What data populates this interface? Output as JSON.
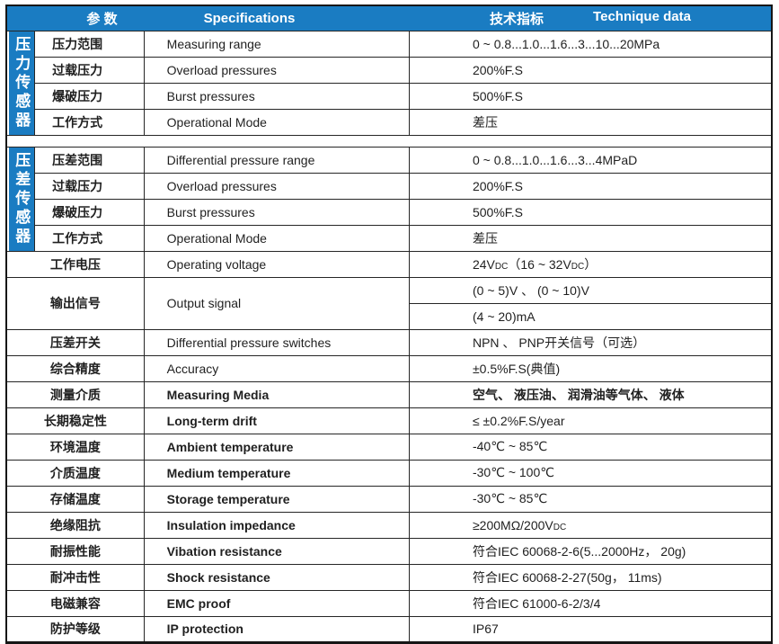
{
  "colors": {
    "header_bg": "#1a7cc2",
    "strip_bg": "#1a7cc2",
    "border": "#262626",
    "text": "#1f1f1f"
  },
  "header": {
    "param_label": "参  数",
    "spec_label": "Specifications",
    "tech_label_zh": "技术指标",
    "tech_label_en": "Technique data"
  },
  "groups": [
    {
      "type": "section",
      "strip_label": "压力传感器",
      "rows": [
        {
          "zh": "压力范围",
          "en": "Measuring range",
          "value": [
            [
              {
                "t": "0 ~ 0.8...1.0...1.6...3...10...20MPa"
              }
            ]
          ]
        },
        {
          "zh": "过载压力",
          "en": "Overload pressures",
          "value": [
            [
              {
                "t": "200%F.S"
              }
            ]
          ]
        },
        {
          "zh": "爆破压力",
          "en": "Burst pressures",
          "value": [
            [
              {
                "t": "500%F.S"
              }
            ]
          ]
        },
        {
          "zh": "工作方式",
          "en": "Operational Mode",
          "value": [
            [
              {
                "t": "差压"
              }
            ]
          ]
        }
      ]
    },
    {
      "type": "gap"
    },
    {
      "type": "section",
      "strip_label": "压差传感器",
      "rows": [
        {
          "zh": "压差范围",
          "en": "Differential pressure range",
          "value": [
            [
              {
                "t": "0 ~ 0.8...1.0...1.6...3...4MPaD"
              }
            ]
          ]
        },
        {
          "zh": "过载压力",
          "en": "Overload pressures",
          "value": [
            [
              {
                "t": "200%F.S"
              }
            ]
          ]
        },
        {
          "zh": "爆破压力",
          "en": "Burst pressures",
          "value": [
            [
              {
                "t": "500%F.S"
              }
            ]
          ]
        },
        {
          "zh": "工作方式",
          "en": "Operational Mode",
          "value": [
            [
              {
                "t": "差压"
              }
            ]
          ]
        }
      ]
    },
    {
      "type": "plain",
      "rows": [
        {
          "zh": "工作电压",
          "en": "Operating voltage",
          "value": [
            [
              {
                "t": "24V"
              },
              {
                "t": "DC",
                "small": true
              },
              {
                "t": "（16 ~ 32V"
              },
              {
                "t": "DC",
                "small": true
              },
              {
                "t": "）"
              }
            ]
          ]
        },
        {
          "zh": "输出信号",
          "en": "Output signal",
          "value": [
            [
              {
                "t": "(0 ~ 5)V 、 (0 ~ 10)V"
              }
            ],
            [
              {
                "t": "(4 ~ 20)mA"
              }
            ]
          ]
        },
        {
          "zh": "压差开关",
          "en": "Differential pressure switches",
          "value": [
            [
              {
                "t": "NPN 、 PNP开关信号（可选）"
              }
            ]
          ]
        },
        {
          "zh": "综合精度",
          "en": "Accuracy",
          "value": [
            [
              {
                "t": "±0.5%F.S(典值)"
              }
            ]
          ]
        },
        {
          "zh": "测量介质",
          "en": "Measuring Media",
          "en_bold": true,
          "value_bold": true,
          "value": [
            [
              {
                "t": "空气、 液压油、 润滑油等气体、 液体"
              }
            ]
          ]
        },
        {
          "zh": "长期稳定性",
          "en": "Long-term drift",
          "en_bold": true,
          "value": [
            [
              {
                "t": "≤ ±0.2%F.S/year"
              }
            ]
          ]
        },
        {
          "zh": "环境温度",
          "en": "Ambient temperature",
          "en_bold": true,
          "value": [
            [
              {
                "t": "-40℃ ~ 85℃"
              }
            ]
          ]
        },
        {
          "zh": "介质温度",
          "en": "Medium temperature",
          "en_bold": true,
          "value": [
            [
              {
                "t": "-30℃ ~ 100℃"
              }
            ]
          ]
        },
        {
          "zh": "存储温度",
          "en": "Storage temperature",
          "en_bold": true,
          "value": [
            [
              {
                "t": "-30℃ ~ 85℃"
              }
            ]
          ]
        },
        {
          "zh": "绝缘阻抗",
          "en": "Insulation impedance",
          "en_bold": true,
          "value": [
            [
              {
                "t": "≥200MΩ/200V"
              },
              {
                "t": "DC",
                "small": true
              }
            ]
          ]
        },
        {
          "zh": "耐振性能",
          "en": "Vibation resistance",
          "en_bold": true,
          "value": [
            [
              {
                "t": "符合IEC 60068-2-6(5...2000Hz， 20g)"
              }
            ]
          ]
        },
        {
          "zh": "耐冲击性",
          "en": "Shock   resistance",
          "en_bold": true,
          "value": [
            [
              {
                "t": "符合IEC 60068-2-27(50g， 11ms)"
              }
            ]
          ]
        },
        {
          "zh": "电磁兼容",
          "en": "EMC proof",
          "en_bold": true,
          "value": [
            [
              {
                "t": "符合IEC 61000-6-2/3/4"
              }
            ]
          ]
        },
        {
          "zh": "防护等级",
          "en": "IP protection",
          "en_bold": true,
          "value": [
            [
              {
                "t": "IP67"
              }
            ]
          ]
        }
      ]
    }
  ]
}
